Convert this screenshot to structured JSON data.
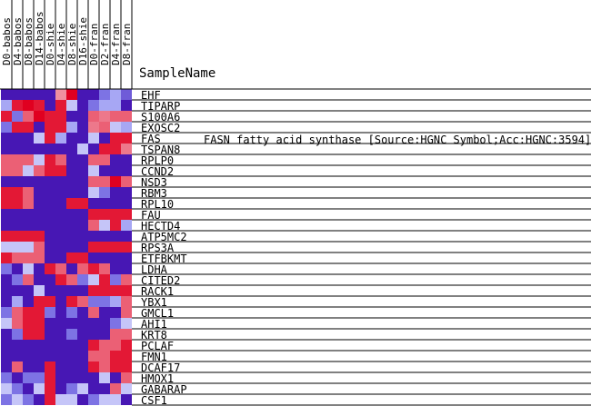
{
  "header_label": "SampleName",
  "chart_data": {
    "type": "heatmap",
    "columns": [
      "D0-babos",
      "D4-babos",
      "D8-babos",
      "D14-babos",
      "D0-shie",
      "D4-shie",
      "D8-shie",
      "D16-shie",
      "D0-fran",
      "D2-fran",
      "D4-fran",
      "D8-fran"
    ],
    "rows": [
      "EHF",
      "TIPARP",
      "S100A6",
      "EXOSC2",
      "FAS",
      "TSPAN8",
      "RPLP0",
      "CCND2",
      "NSD3",
      "RBM3",
      "RPL10",
      "FAU",
      "HECTD4",
      "ATP5MC2",
      "RPS3A",
      "ETFBKMT",
      "LDHA",
      "CITED2",
      "RACK1",
      "YBX1",
      "GMCL1",
      "AHI1",
      "KRT8",
      "PCLAF",
      "FMN1",
      "DCAF17",
      "HMOX1",
      "GABARAP",
      "CSF1"
    ],
    "highlight_row": "FAS",
    "highlight_description": "FASN  fatty acid synthase [Source:HGNC Symbol;Acc:HGNC:3594]",
    "color_scale": {
      "low": "#3a00a8",
      "mid_low": "#8a8af0",
      "mid": "#ffffff",
      "mid_high": "#f090a0",
      "high": "#e00020"
    },
    "value_range": [
      -1,
      1
    ],
    "values": [
      [
        -0.9,
        -0.9,
        -0.9,
        -0.9,
        -0.9,
        0.4,
        1.0,
        -0.9,
        -0.9,
        -0.5,
        -0.3,
        -0.6
      ],
      [
        -0.3,
        0.9,
        1.0,
        0.9,
        -0.9,
        0.9,
        -0.2,
        -0.9,
        -0.5,
        -0.3,
        -0.3,
        -0.9
      ],
      [
        0.9,
        -0.5,
        0.6,
        1.0,
        0.9,
        0.9,
        -0.9,
        -0.9,
        0.6,
        0.5,
        0.6,
        0.6
      ],
      [
        -0.5,
        0.9,
        0.9,
        -0.9,
        0.9,
        0.9,
        -0.3,
        -0.9,
        0.5,
        0.6,
        -0.2,
        -0.3
      ],
      [
        -0.9,
        -0.9,
        -0.9,
        -0.2,
        0.9,
        -0.3,
        -0.9,
        -0.9,
        -0.2,
        -0.9,
        0.9,
        0.9
      ],
      [
        -0.9,
        -0.9,
        -0.9,
        -0.9,
        -0.9,
        -0.9,
        -0.9,
        -0.2,
        -0.9,
        0.9,
        0.9,
        0.5
      ],
      [
        0.6,
        0.6,
        0.6,
        -0.2,
        0.9,
        0.6,
        -0.9,
        -0.9,
        0.6,
        0.6,
        -0.9,
        -0.9
      ],
      [
        0.6,
        0.6,
        -0.2,
        0.6,
        0.9,
        0.9,
        -0.9,
        -0.9,
        -0.2,
        -0.9,
        -0.9,
        -0.9
      ],
      [
        -0.9,
        -0.9,
        -0.9,
        -0.9,
        -0.9,
        -0.9,
        -0.9,
        -0.9,
        0.6,
        0.6,
        1.0,
        0.6
      ],
      [
        0.9,
        0.9,
        0.6,
        -0.9,
        -0.9,
        -0.9,
        -0.9,
        -0.9,
        -0.2,
        -0.5,
        -0.9,
        -0.9
      ],
      [
        0.9,
        0.9,
        0.6,
        -0.9,
        -0.9,
        -0.9,
        0.9,
        0.9,
        -0.9,
        -0.9,
        -0.9,
        -0.9
      ],
      [
        -0.9,
        -0.9,
        -0.9,
        -0.9,
        -0.9,
        -0.9,
        -0.9,
        -0.9,
        0.9,
        0.9,
        0.9,
        0.9
      ],
      [
        -0.9,
        -0.9,
        -0.9,
        -0.9,
        -0.9,
        -0.9,
        -0.9,
        -0.9,
        0.6,
        -0.2,
        0.9,
        -0.3
      ],
      [
        0.9,
        0.9,
        0.9,
        0.9,
        -0.9,
        -0.9,
        -0.9,
        -0.9,
        -0.9,
        -0.9,
        -0.9,
        -0.9
      ],
      [
        -0.2,
        -0.2,
        -0.2,
        0.6,
        -0.9,
        -0.9,
        -0.9,
        -0.9,
        0.9,
        0.9,
        0.9,
        0.9
      ],
      [
        0.9,
        0.6,
        0.6,
        0.6,
        -0.9,
        -0.9,
        0.9,
        0.9,
        -0.9,
        -0.9,
        -0.9,
        -0.9
      ],
      [
        -0.5,
        -0.9,
        -0.2,
        -0.9,
        0.9,
        0.6,
        -0.9,
        0.6,
        0.9,
        0.6,
        -0.9,
        -0.9
      ],
      [
        -0.9,
        -0.5,
        0.6,
        -0.9,
        -0.9,
        0.9,
        0.6,
        -0.5,
        -0.2,
        0.9,
        -0.5,
        0.6
      ],
      [
        -0.9,
        -0.9,
        -0.9,
        -0.2,
        -0.9,
        -0.9,
        -0.9,
        -0.9,
        0.9,
        0.9,
        0.9,
        0.9
      ],
      [
        -0.9,
        -0.3,
        -0.9,
        0.9,
        0.9,
        -0.9,
        0.9,
        0.6,
        -0.5,
        -0.5,
        -0.3,
        0.6
      ],
      [
        -0.5,
        0.6,
        0.9,
        0.9,
        -0.5,
        -0.9,
        -0.5,
        -0.9,
        0.6,
        -0.9,
        -0.9,
        0.6
      ],
      [
        -0.2,
        0.6,
        0.9,
        0.9,
        -0.9,
        -0.9,
        -0.9,
        -0.9,
        -0.9,
        -0.9,
        -0.5,
        -0.2
      ],
      [
        -0.9,
        -0.5,
        0.9,
        0.9,
        -0.9,
        -0.9,
        -0.5,
        -0.9,
        -0.9,
        -0.9,
        0.6,
        0.6
      ],
      [
        -0.9,
        -0.9,
        -0.9,
        -0.9,
        -0.9,
        -0.9,
        -0.9,
        -0.9,
        0.9,
        0.6,
        0.6,
        0.9
      ],
      [
        -0.9,
        -0.9,
        -0.9,
        -0.9,
        -0.9,
        -0.9,
        -0.9,
        -0.9,
        0.6,
        0.6,
        0.9,
        0.9
      ],
      [
        -0.9,
        0.6,
        -0.9,
        -0.9,
        0.9,
        -0.9,
        -0.9,
        -0.9,
        0.9,
        0.6,
        0.9,
        0.9
      ],
      [
        -0.5,
        -0.9,
        -0.5,
        -0.5,
        0.9,
        -0.9,
        -0.9,
        -0.9,
        -0.9,
        -0.2,
        -0.9,
        0.6
      ],
      [
        -0.2,
        -0.5,
        -0.9,
        -0.2,
        0.9,
        -0.9,
        -0.5,
        -0.2,
        -0.9,
        -0.9,
        0.6,
        -0.2
      ],
      [
        -0.5,
        -0.2,
        -0.5,
        -0.9,
        0.9,
        -0.2,
        -0.2,
        -0.9,
        -0.5,
        -0.2,
        -0.2,
        -0.9
      ]
    ]
  }
}
